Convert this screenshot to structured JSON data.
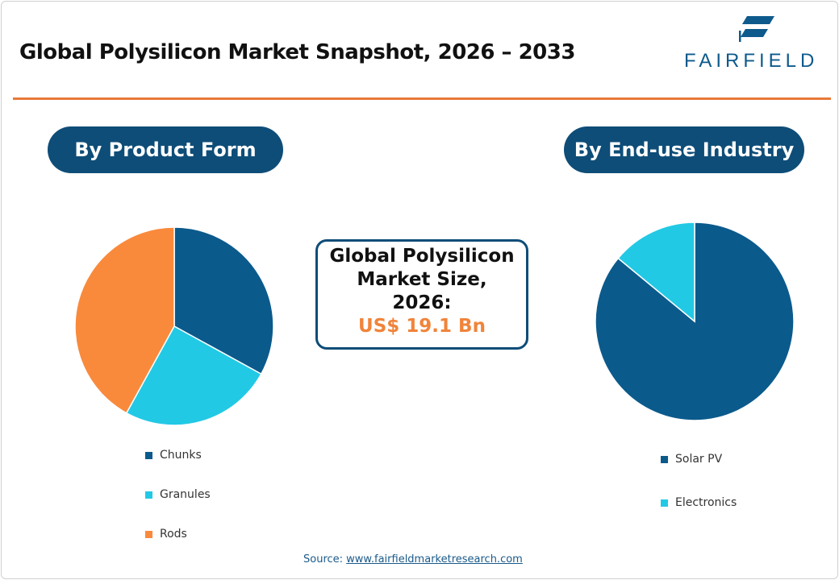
{
  "title": "Global Polysilicon Market Snapshot, 2026 – 2033",
  "logo": "FAIRFIELD",
  "colors": {
    "dark_blue": "#0b5a8c",
    "cyan": "#22c9e5",
    "orange": "#f98a3c",
    "accent": "#e8793a",
    "navy": "#0e4d78"
  },
  "center": {
    "line1": "Global Polysilicon",
    "line2": "Market Size,",
    "line3": "2026:",
    "value": "US$ 19.1 Bn"
  },
  "source_label": "Source:",
  "source_link": "www.fairfieldmarketresearch.com",
  "chart_data": [
    {
      "type": "pie",
      "title": "By Product Form",
      "categories": [
        "Chunks",
        "Granules",
        "Rods"
      ],
      "values": [
        33,
        25,
        42
      ],
      "colors": [
        "#0b5a8c",
        "#22c9e5",
        "#f98a3c"
      ],
      "legend": "bottom"
    },
    {
      "type": "pie",
      "title": "By End-use Industry",
      "categories": [
        "Solar PV",
        "Electronics"
      ],
      "values": [
        86,
        14
      ],
      "colors": [
        "#0b5a8c",
        "#22c9e5"
      ],
      "legend": "bottom"
    }
  ]
}
